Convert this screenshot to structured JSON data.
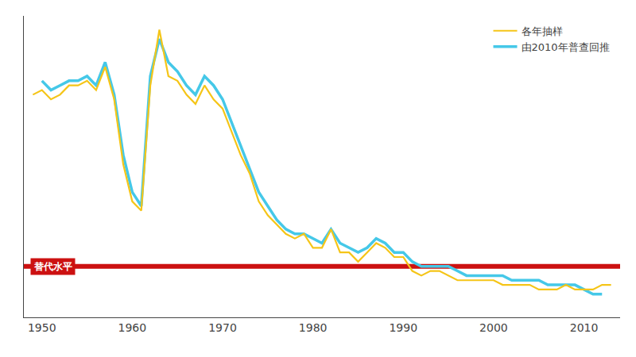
{
  "chart_data": {
    "type": "line",
    "x": [
      1949,
      1950,
      1951,
      1952,
      1953,
      1954,
      1955,
      1956,
      1957,
      1958,
      1959,
      1960,
      1961,
      1962,
      1963,
      1964,
      1965,
      1966,
      1967,
      1968,
      1969,
      1970,
      1971,
      1972,
      1973,
      1974,
      1975,
      1976,
      1977,
      1978,
      1979,
      1980,
      1981,
      1982,
      1983,
      1984,
      1985,
      1986,
      1987,
      1988,
      1989,
      1990,
      1991,
      1992,
      1993,
      1994,
      1995,
      1996,
      1997,
      1998,
      1999,
      2000,
      2001,
      2002,
      2003,
      2004,
      2005,
      2006,
      2007,
      2008,
      2009,
      2010,
      2011,
      2012,
      2013
    ],
    "series": [
      {
        "name": "各年抽样",
        "color": "#f5c518",
        "values": [
          5.8,
          5.9,
          5.7,
          5.8,
          6.0,
          6.0,
          6.1,
          5.9,
          6.4,
          5.7,
          4.3,
          3.5,
          3.3,
          6.0,
          7.2,
          6.2,
          6.1,
          5.8,
          5.6,
          6.0,
          5.7,
          5.5,
          5.0,
          4.5,
          4.1,
          3.5,
          3.2,
          3.0,
          2.8,
          2.7,
          2.8,
          2.5,
          2.5,
          2.9,
          2.4,
          2.4,
          2.2,
          2.4,
          2.6,
          2.5,
          2.3,
          2.3,
          2.0,
          1.9,
          2.0,
          2.0,
          1.9,
          1.8,
          1.8,
          1.8,
          1.8,
          1.8,
          1.7,
          1.7,
          1.7,
          1.7,
          1.6,
          1.6,
          1.6,
          1.7,
          1.6,
          1.6,
          1.6,
          1.7,
          1.7
        ]
      },
      {
        "name": "由2010年普查回推",
        "color": "#45c8e8",
        "values": [
          null,
          6.1,
          5.9,
          6.0,
          6.1,
          6.1,
          6.2,
          6.0,
          6.5,
          5.8,
          4.5,
          3.7,
          3.4,
          6.2,
          7.0,
          6.5,
          6.3,
          6.0,
          5.8,
          6.2,
          6.0,
          5.7,
          5.2,
          4.7,
          4.2,
          3.7,
          3.4,
          3.1,
          2.9,
          2.8,
          2.8,
          2.7,
          2.6,
          2.9,
          2.6,
          2.5,
          2.4,
          2.5,
          2.7,
          2.6,
          2.4,
          2.4,
          2.2,
          2.1,
          2.1,
          2.1,
          2.1,
          2.0,
          1.9,
          1.9,
          1.9,
          1.9,
          1.9,
          1.8,
          1.8,
          1.8,
          1.8,
          1.7,
          1.7,
          1.7,
          1.7,
          1.6,
          1.5,
          1.5,
          null
        ]
      }
    ],
    "hlines": [
      {
        "value": 2.1,
        "label": "替代水平",
        "color": "#cc1111"
      }
    ],
    "xlim": [
      1948,
      2014
    ],
    "xticks": [
      1950,
      1960,
      1970,
      1980,
      1990,
      2000,
      2010
    ],
    "ylim": [
      1.0,
      7.5
    ],
    "tick_labels": "x",
    "grid": false,
    "legend": "upper right"
  }
}
